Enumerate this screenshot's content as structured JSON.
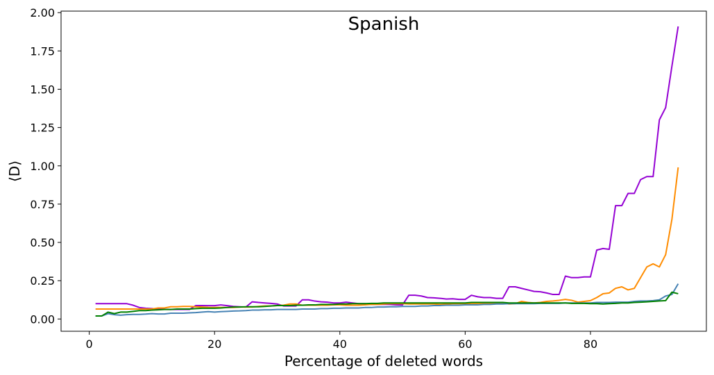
{
  "chart_data": {
    "type": "line",
    "title": "Spanish",
    "xlabel": "Percentage of deleted words",
    "ylabel": "⟨D⟩",
    "xlim": [
      -4.5,
      98.5
    ],
    "ylim": [
      -0.08,
      2.01
    ],
    "xticks": [
      0,
      20,
      40,
      60,
      80
    ],
    "xtick_labels": [
      "0",
      "20",
      "40",
      "60",
      "80"
    ],
    "yticks": [
      0.0,
      0.25,
      0.5,
      0.75,
      1.0,
      1.25,
      1.5,
      1.75,
      2.0
    ],
    "ytick_labels": [
      "0.00",
      "0.25",
      "0.50",
      "0.75",
      "1.00",
      "1.25",
      "1.50",
      "1.75",
      "2.00"
    ],
    "grid": false,
    "x": [
      1,
      2,
      3,
      4,
      5,
      6,
      7,
      8,
      9,
      10,
      11,
      12,
      13,
      14,
      15,
      16,
      17,
      18,
      19,
      20,
      21,
      22,
      23,
      24,
      25,
      26,
      27,
      28,
      29,
      30,
      31,
      32,
      33,
      34,
      35,
      36,
      37,
      38,
      39,
      40,
      41,
      42,
      43,
      44,
      45,
      46,
      47,
      48,
      49,
      50,
      51,
      52,
      53,
      54,
      55,
      56,
      57,
      58,
      59,
      60,
      61,
      62,
      63,
      64,
      65,
      66,
      67,
      68,
      69,
      70,
      71,
      72,
      73,
      74,
      75,
      76,
      77,
      78,
      79,
      80,
      81,
      82,
      83,
      84,
      85,
      86,
      87,
      88,
      89,
      90,
      91,
      92,
      93,
      94
    ],
    "series": [
      {
        "color": "#9400d3",
        "values": [
          0.1,
          0.1,
          0.1,
          0.1,
          0.1,
          0.1,
          0.09,
          0.075,
          0.07,
          0.068,
          0.065,
          0.063,
          0.062,
          0.062,
          0.062,
          0.062,
          0.088,
          0.088,
          0.087,
          0.087,
          0.092,
          0.087,
          0.082,
          0.08,
          0.078,
          0.112,
          0.108,
          0.105,
          0.102,
          0.098,
          0.085,
          0.085,
          0.085,
          0.125,
          0.125,
          0.117,
          0.112,
          0.11,
          0.105,
          0.105,
          0.11,
          0.105,
          0.1,
          0.1,
          0.095,
          0.095,
          0.095,
          0.095,
          0.092,
          0.092,
          0.155,
          0.155,
          0.15,
          0.14,
          0.138,
          0.135,
          0.13,
          0.132,
          0.128,
          0.128,
          0.155,
          0.145,
          0.14,
          0.14,
          0.135,
          0.135,
          0.21,
          0.21,
          0.2,
          0.19,
          0.18,
          0.178,
          0.17,
          0.16,
          0.16,
          0.28,
          0.27,
          0.27,
          0.275,
          0.275,
          0.45,
          0.46,
          0.455,
          0.74,
          0.74,
          0.82,
          0.82,
          0.91,
          0.93,
          0.93,
          1.3,
          1.38,
          1.65,
          1.91
        ]
      },
      {
        "color": "#ff8c00",
        "values": [
          0.065,
          0.065,
          0.065,
          0.065,
          0.065,
          0.065,
          0.065,
          0.065,
          0.065,
          0.065,
          0.072,
          0.072,
          0.08,
          0.08,
          0.082,
          0.082,
          0.08,
          0.078,
          0.076,
          0.075,
          0.075,
          0.075,
          0.075,
          0.078,
          0.078,
          0.078,
          0.082,
          0.085,
          0.085,
          0.088,
          0.09,
          0.098,
          0.098,
          0.09,
          0.09,
          0.09,
          0.09,
          0.09,
          0.092,
          0.092,
          0.09,
          0.09,
          0.09,
          0.092,
          0.095,
          0.095,
          0.098,
          0.1,
          0.1,
          0.1,
          0.098,
          0.098,
          0.098,
          0.098,
          0.098,
          0.095,
          0.098,
          0.1,
          0.1,
          0.1,
          0.102,
          0.102,
          0.102,
          0.102,
          0.105,
          0.105,
          0.098,
          0.1,
          0.115,
          0.108,
          0.105,
          0.108,
          0.115,
          0.118,
          0.122,
          0.128,
          0.122,
          0.11,
          0.115,
          0.12,
          0.14,
          0.165,
          0.17,
          0.2,
          0.21,
          0.19,
          0.2,
          0.27,
          0.34,
          0.36,
          0.34,
          0.42,
          0.65,
          0.99
        ]
      },
      {
        "color": "#4682b4",
        "values": [
          0.02,
          0.02,
          0.035,
          0.028,
          0.025,
          0.028,
          0.03,
          0.03,
          0.032,
          0.035,
          0.033,
          0.033,
          0.038,
          0.038,
          0.038,
          0.04,
          0.042,
          0.045,
          0.048,
          0.045,
          0.048,
          0.05,
          0.052,
          0.053,
          0.055,
          0.058,
          0.058,
          0.06,
          0.06,
          0.062,
          0.062,
          0.062,
          0.062,
          0.065,
          0.065,
          0.065,
          0.068,
          0.068,
          0.07,
          0.07,
          0.072,
          0.072,
          0.072,
          0.075,
          0.075,
          0.078,
          0.078,
          0.08,
          0.08,
          0.082,
          0.082,
          0.082,
          0.085,
          0.085,
          0.088,
          0.088,
          0.09,
          0.09,
          0.09,
          0.092,
          0.092,
          0.092,
          0.095,
          0.095,
          0.098,
          0.098,
          0.1,
          0.1,
          0.1,
          0.1,
          0.1,
          0.102,
          0.102,
          0.102,
          0.102,
          0.105,
          0.105,
          0.105,
          0.105,
          0.105,
          0.108,
          0.108,
          0.108,
          0.11,
          0.11,
          0.11,
          0.115,
          0.118,
          0.118,
          0.12,
          0.125,
          0.15,
          0.16,
          0.23
        ]
      },
      {
        "color": "#008000",
        "values": [
          0.02,
          0.02,
          0.045,
          0.035,
          0.045,
          0.045,
          0.05,
          0.055,
          0.055,
          0.058,
          0.06,
          0.062,
          0.062,
          0.065,
          0.065,
          0.065,
          0.068,
          0.07,
          0.07,
          0.07,
          0.072,
          0.075,
          0.078,
          0.078,
          0.08,
          0.08,
          0.08,
          0.082,
          0.085,
          0.088,
          0.088,
          0.088,
          0.09,
          0.09,
          0.092,
          0.092,
          0.095,
          0.095,
          0.095,
          0.098,
          0.098,
          0.1,
          0.1,
          0.1,
          0.102,
          0.102,
          0.105,
          0.105,
          0.105,
          0.105,
          0.105,
          0.105,
          0.105,
          0.105,
          0.105,
          0.105,
          0.105,
          0.105,
          0.105,
          0.105,
          0.108,
          0.108,
          0.108,
          0.108,
          0.108,
          0.108,
          0.105,
          0.105,
          0.105,
          0.105,
          0.105,
          0.105,
          0.105,
          0.105,
          0.105,
          0.105,
          0.102,
          0.102,
          0.102,
          0.1,
          0.1,
          0.098,
          0.1,
          0.102,
          0.105,
          0.105,
          0.108,
          0.11,
          0.112,
          0.115,
          0.118,
          0.12,
          0.175,
          0.165
        ]
      }
    ]
  }
}
